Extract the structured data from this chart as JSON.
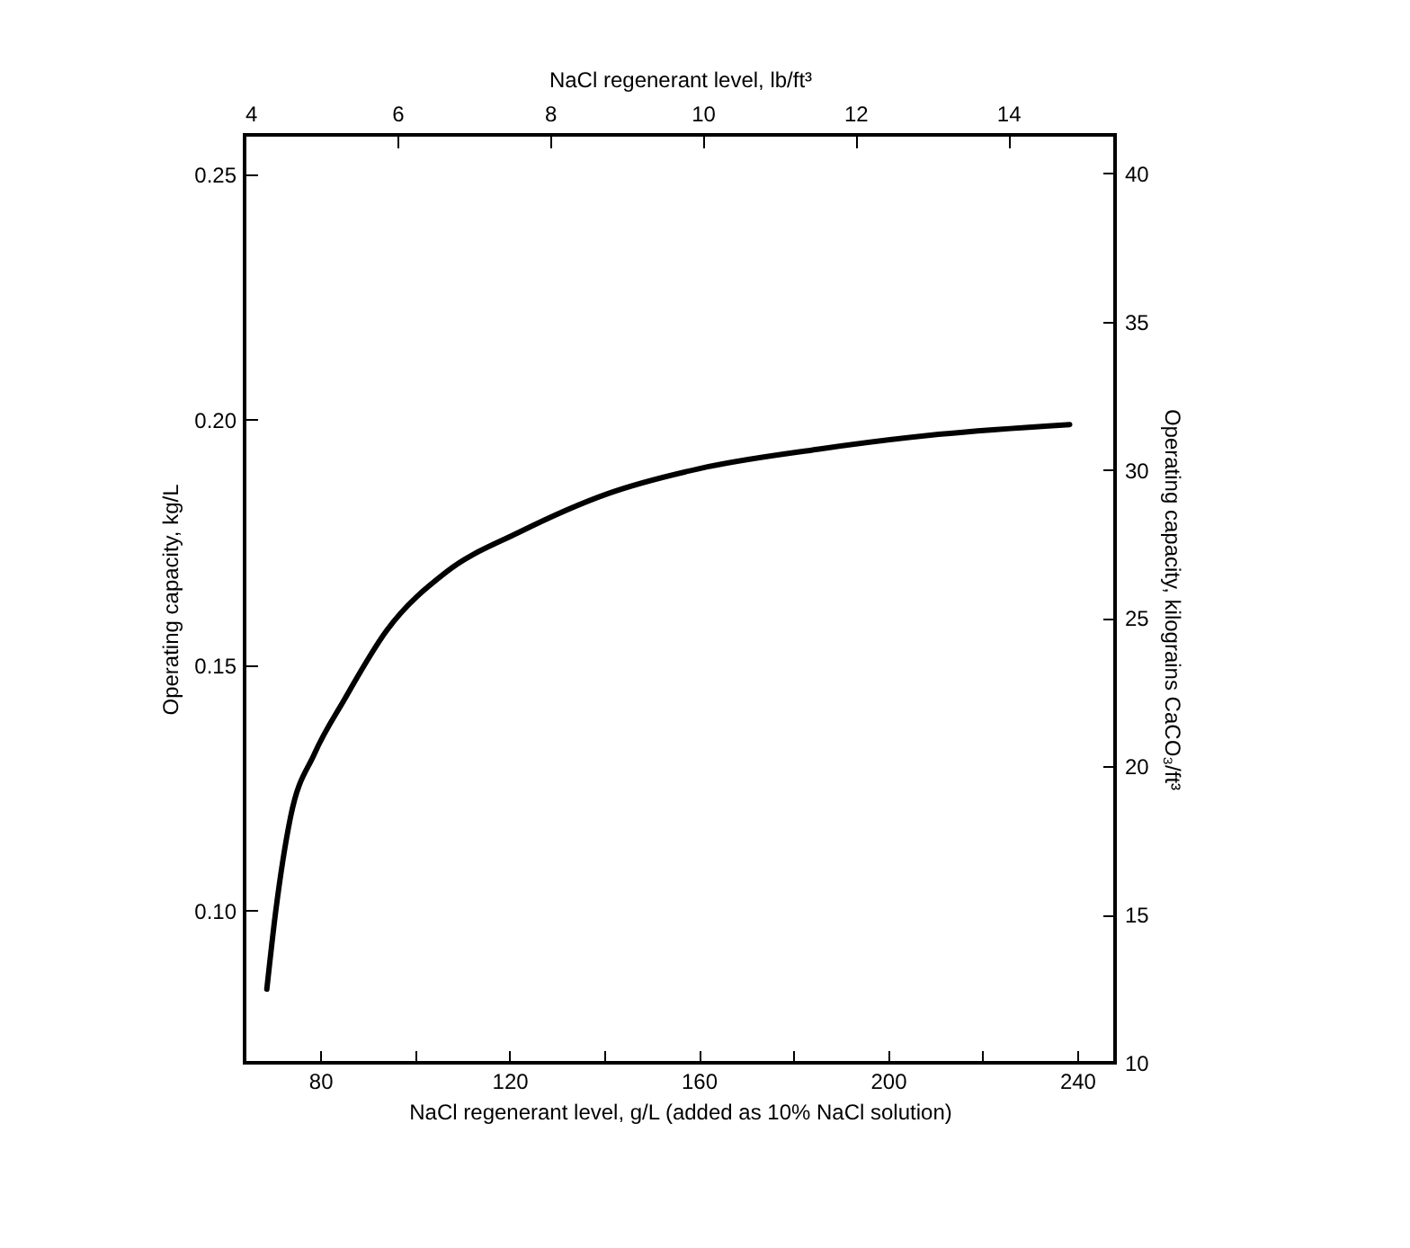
{
  "chart_data": {
    "type": "line",
    "xlabel": "NaCl regenerant level, g/L (added as 10% NaCl solution)",
    "ylabel": "Operating capacity, kg/L",
    "y2label": "Operating capacity, kilograins CaCO₃/ft³",
    "x2label": "NaCl regenerant level, lb/ft³",
    "x": [
      68.7,
      70.6,
      73.7,
      78.8,
      85.1,
      94.0,
      106.7,
      121.9,
      141.0,
      160.0,
      185.4,
      210.7,
      238.4
    ],
    "series": [
      {
        "color": "#000000",
        "values": [
          0.084,
          0.1,
          0.119,
          0.132,
          0.143,
          0.157,
          0.169,
          0.177,
          0.185,
          0.19,
          0.194,
          0.197,
          0.199
        ]
      }
    ],
    "xlim": [
      64,
      248
    ],
    "xticks": [
      80,
      {
        "value": 100,
        "label": null
      },
      120,
      {
        "value": 140,
        "label": null
      },
      160,
      {
        "value": 180,
        "label": null
      },
      200,
      {
        "value": 220,
        "label": null
      },
      240
    ],
    "ylim": [
      0.069,
      0.258
    ],
    "yticks": [
      {
        "value": 0.1,
        "label": "0.10"
      },
      0.15,
      {
        "value": 0.2,
        "label": "0.20"
      },
      0.25
    ],
    "y2lim": [
      10,
      41.3
    ],
    "y2ticks": [
      10,
      15,
      20,
      25,
      30,
      35,
      40
    ],
    "x2lim": [
      4,
      15.4
    ],
    "x2ticks": [
      4,
      6,
      8,
      10,
      12,
      14
    ],
    "grid": false,
    "marker": "none",
    "line_style": "solid"
  }
}
